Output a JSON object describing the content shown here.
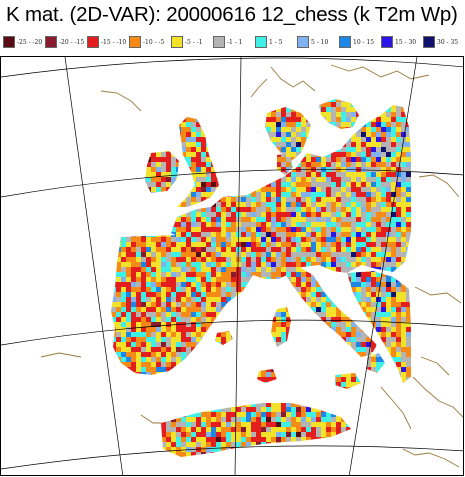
{
  "title": "K mat. (2D-VAR): 20000616 12_chess (k T2m Wp)",
  "legend": [
    {
      "label": "-25 - -20",
      "color": "#5a0c14"
    },
    {
      "label": "-20 - -15",
      "color": "#8a1a2e"
    },
    {
      "label": "-15 - -10",
      "color": "#e41e1e"
    },
    {
      "label": "-10 - -5",
      "color": "#f68a16"
    },
    {
      "label": "-5 - -1",
      "color": "#f2e22a"
    },
    {
      "label": "-1 - 1",
      "color": "#b4b4b4"
    },
    {
      "label": "1 - 5",
      "color": "#3ef0e6"
    },
    {
      "label": "5 - 10",
      "color": "#7fb2ee"
    },
    {
      "label": "10 - 15",
      "color": "#1e86e6"
    },
    {
      "label": "15 - 30",
      "color": "#2a14e6"
    },
    {
      "label": "30 - 35",
      "color": "#12126e"
    }
  ],
  "colors": {
    "coastline": "#9a7a3c",
    "graticule": "#000000",
    "background": "#ffffff"
  }
}
